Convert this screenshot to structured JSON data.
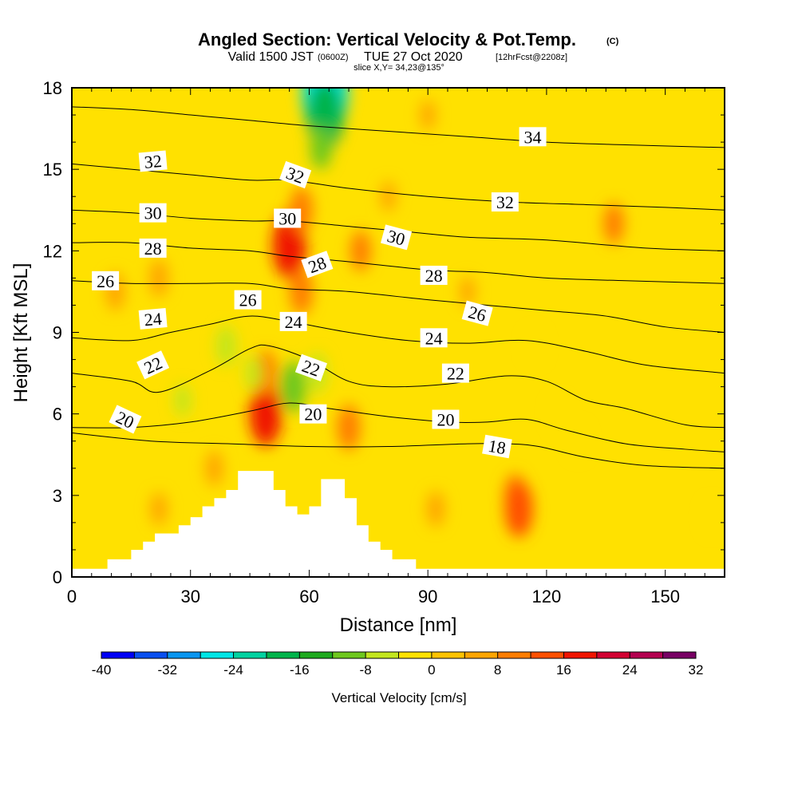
{
  "header": {
    "title": "Angled Section: Vertical Velocity & Pot.Temp.",
    "title_mark": "(C)",
    "valid_prefix": "Valid 1500 JST",
    "valid_utc": "(0600Z)",
    "valid_date": "TUE 27 Oct 2020",
    "forecast": "[12hrFcst@2208z]",
    "slice": "slice X,Y= 34,23@135°"
  },
  "chart_data": {
    "type": "heatmap",
    "xlabel": "Distance [nm]",
    "ylabel": "Height [Kft MSL]",
    "xlim": [
      0,
      165
    ],
    "ylim": [
      0,
      18
    ],
    "xticks": [
      0,
      30,
      60,
      90,
      120,
      150
    ],
    "yticks": [
      0,
      3,
      6,
      9,
      12,
      15,
      18
    ],
    "background_color": "#FFE100",
    "colorbar": {
      "title": "Vertical Velocity [cm/s]",
      "tick_labels": [
        "-40",
        "-32",
        "-24",
        "-16",
        "-8",
        "0",
        "8",
        "16",
        "24",
        "32"
      ],
      "levels": [
        -40,
        -36,
        -32,
        -28,
        -24,
        -20,
        -16,
        -12,
        -8,
        -4,
        0,
        4,
        8,
        12,
        16,
        20,
        24,
        28,
        32
      ],
      "colors": [
        "#0000F5",
        "#0A50F0",
        "#0A96F0",
        "#00E6E6",
        "#00D2A0",
        "#00B44B",
        "#1EAA1E",
        "#6EC81E",
        "#C3E61E",
        "#FFE100",
        "#FFC300",
        "#FFA500",
        "#FF7D00",
        "#FF5000",
        "#F01400",
        "#D20032",
        "#B40050",
        "#780064"
      ]
    },
    "velocity_features": [
      {
        "x": 64,
        "y": 17.9,
        "value": -28
      },
      {
        "x": 64,
        "y": 17,
        "value": -20
      },
      {
        "x": 63,
        "y": 15.8,
        "value": -9
      },
      {
        "x": 55,
        "y": 12.2,
        "value": 18
      },
      {
        "x": 58,
        "y": 13.5,
        "value": 10
      },
      {
        "x": 58,
        "y": 10.5,
        "value": 10
      },
      {
        "x": 49,
        "y": 6,
        "value": 17
      },
      {
        "x": 49,
        "y": 7.5,
        "value": 10
      },
      {
        "x": 56,
        "y": 7,
        "value": -12
      },
      {
        "x": 62,
        "y": 7.5,
        "value": -8
      },
      {
        "x": 46,
        "y": 7.5,
        "value": -6
      },
      {
        "x": 39,
        "y": 8.5,
        "value": -8
      },
      {
        "x": 28,
        "y": 6.5,
        "value": -5
      },
      {
        "x": 70,
        "y": 5.5,
        "value": 10
      },
      {
        "x": 73,
        "y": 12,
        "value": 8
      },
      {
        "x": 22,
        "y": 11,
        "value": 7
      },
      {
        "x": 11,
        "y": 10.5,
        "value": 7
      },
      {
        "x": 112,
        "y": 3,
        "value": 9
      },
      {
        "x": 113,
        "y": 2.5,
        "value": 14
      },
      {
        "x": 128,
        "y": 5,
        "value": -4
      },
      {
        "x": 117,
        "y": 8.5,
        "value": -4
      },
      {
        "x": 123,
        "y": 6,
        "value": -4
      },
      {
        "x": 162,
        "y": 2.2,
        "value": -4
      },
      {
        "x": 137,
        "y": 13,
        "value": 8
      },
      {
        "x": 90,
        "y": 17,
        "value": 4
      },
      {
        "x": 92,
        "y": 2.5,
        "value": 6
      },
      {
        "x": 80,
        "y": 14,
        "value": 4
      },
      {
        "x": 100,
        "y": 10.5,
        "value": 4
      },
      {
        "x": 36,
        "y": 4,
        "value": 6
      },
      {
        "x": 22,
        "y": 2.5,
        "value": 5
      }
    ],
    "terrain": [
      {
        "x": 0,
        "y": 0.3
      },
      {
        "x": 9,
        "y": 0.3
      },
      {
        "x": 9,
        "y": 0.65
      },
      {
        "x": 15,
        "y": 0.65
      },
      {
        "x": 15,
        "y": 1
      },
      {
        "x": 18,
        "y": 1
      },
      {
        "x": 18,
        "y": 1.3
      },
      {
        "x": 21,
        "y": 1.3
      },
      {
        "x": 21,
        "y": 1.6
      },
      {
        "x": 27,
        "y": 1.6
      },
      {
        "x": 27,
        "y": 1.9
      },
      {
        "x": 30,
        "y": 1.9
      },
      {
        "x": 30,
        "y": 2.2
      },
      {
        "x": 33,
        "y": 2.2
      },
      {
        "x": 33,
        "y": 2.6
      },
      {
        "x": 36,
        "y": 2.6
      },
      {
        "x": 36,
        "y": 2.9
      },
      {
        "x": 39,
        "y": 2.9
      },
      {
        "x": 39,
        "y": 3.2
      },
      {
        "x": 42,
        "y": 3.2
      },
      {
        "x": 42,
        "y": 3.9
      },
      {
        "x": 51,
        "y": 3.9
      },
      {
        "x": 51,
        "y": 3.2
      },
      {
        "x": 54,
        "y": 3.2
      },
      {
        "x": 54,
        "y": 2.6
      },
      {
        "x": 57,
        "y": 2.6
      },
      {
        "x": 57,
        "y": 2.3
      },
      {
        "x": 60,
        "y": 2.3
      },
      {
        "x": 60,
        "y": 2.6
      },
      {
        "x": 63,
        "y": 2.6
      },
      {
        "x": 63,
        "y": 3.6
      },
      {
        "x": 69,
        "y": 3.6
      },
      {
        "x": 69,
        "y": 2.9
      },
      {
        "x": 72,
        "y": 2.9
      },
      {
        "x": 72,
        "y": 1.9
      },
      {
        "x": 75,
        "y": 1.9
      },
      {
        "x": 75,
        "y": 1.3
      },
      {
        "x": 78,
        "y": 1.3
      },
      {
        "x": 78,
        "y": 1
      },
      {
        "x": 81,
        "y": 1
      },
      {
        "x": 81,
        "y": 0.65
      },
      {
        "x": 87,
        "y": 0.65
      },
      {
        "x": 87,
        "y": 0.3
      },
      {
        "x": 165,
        "y": 0.3
      }
    ],
    "isentropes": [
      {
        "value": 18,
        "points": [
          [
            0,
            5.3
          ],
          [
            20,
            5
          ],
          [
            40,
            4.9
          ],
          [
            60,
            4.8
          ],
          [
            80,
            4.8
          ],
          [
            100,
            4.9
          ],
          [
            110,
            4.9
          ],
          [
            118,
            4.8
          ],
          [
            130,
            4.4
          ],
          [
            145,
            4.1
          ],
          [
            165,
            4
          ]
        ]
      },
      {
        "value": 20,
        "points": [
          [
            0,
            5.5
          ],
          [
            15,
            5.5
          ],
          [
            30,
            5.7
          ],
          [
            45,
            6.1
          ],
          [
            55,
            6.4
          ],
          [
            65,
            6.2
          ],
          [
            80,
            5.9
          ],
          [
            95,
            5.7
          ],
          [
            105,
            5.7
          ],
          [
            115,
            5.8
          ],
          [
            125,
            5.4
          ],
          [
            140,
            4.9
          ],
          [
            155,
            4.7
          ],
          [
            165,
            4.6
          ]
        ]
      },
      {
        "value": 22,
        "points": [
          [
            0,
            7.5
          ],
          [
            15,
            7.2
          ],
          [
            22,
            6.8
          ],
          [
            35,
            7.6
          ],
          [
            45,
            8.4
          ],
          [
            50,
            8.5
          ],
          [
            60,
            8
          ],
          [
            70,
            7.2
          ],
          [
            80,
            7
          ],
          [
            95,
            7.1
          ],
          [
            110,
            7.4
          ],
          [
            120,
            7.2
          ],
          [
            130,
            6.5
          ],
          [
            140,
            6.2
          ],
          [
            155,
            5.6
          ],
          [
            165,
            5.5
          ]
        ]
      },
      {
        "value": 24,
        "points": [
          [
            0,
            8.8
          ],
          [
            15,
            8.7
          ],
          [
            25,
            9
          ],
          [
            35,
            9.3
          ],
          [
            45,
            9.6
          ],
          [
            55,
            9.4
          ],
          [
            70,
            9
          ],
          [
            85,
            8.7
          ],
          [
            100,
            8.6
          ],
          [
            115,
            8.7
          ],
          [
            130,
            8.3
          ],
          [
            145,
            7.8
          ],
          [
            165,
            7.5
          ]
        ]
      },
      {
        "value": 26,
        "points": [
          [
            0,
            10.9
          ],
          [
            15,
            10.8
          ],
          [
            30,
            10.8
          ],
          [
            45,
            10.8
          ],
          [
            55,
            10.6
          ],
          [
            70,
            10.5
          ],
          [
            90,
            10.2
          ],
          [
            105,
            10
          ],
          [
            120,
            9.8
          ],
          [
            135,
            9.6
          ],
          [
            150,
            9.2
          ],
          [
            165,
            9
          ]
        ]
      },
      {
        "value": 28,
        "points": [
          [
            0,
            12.3
          ],
          [
            15,
            12.3
          ],
          [
            30,
            12.1
          ],
          [
            45,
            12
          ],
          [
            55,
            11.8
          ],
          [
            70,
            11.6
          ],
          [
            90,
            11.3
          ],
          [
            105,
            11.2
          ],
          [
            120,
            11
          ],
          [
            140,
            10.9
          ],
          [
            165,
            10.8
          ]
        ]
      },
      {
        "value": 30,
        "points": [
          [
            0,
            13.5
          ],
          [
            15,
            13.4
          ],
          [
            30,
            13.2
          ],
          [
            45,
            13.1
          ],
          [
            55,
            13.1
          ],
          [
            70,
            12.9
          ],
          [
            85,
            12.7
          ],
          [
            100,
            12.5
          ],
          [
            120,
            12.4
          ],
          [
            145,
            12.1
          ],
          [
            165,
            12
          ]
        ]
      },
      {
        "value": 32,
        "points": [
          [
            0,
            15.2
          ],
          [
            15,
            15
          ],
          [
            30,
            14.8
          ],
          [
            45,
            14.6
          ],
          [
            55,
            14.6
          ],
          [
            70,
            14.3
          ],
          [
            90,
            14
          ],
          [
            110,
            13.8
          ],
          [
            130,
            13.7
          ],
          [
            150,
            13.6
          ],
          [
            165,
            13.5
          ]
        ]
      },
      {
        "value": 34,
        "points": [
          [
            0,
            17.3
          ],
          [
            15,
            17.2
          ],
          [
            30,
            17
          ],
          [
            45,
            16.8
          ],
          [
            60,
            16.6
          ],
          [
            80,
            16.4
          ],
          [
            100,
            16.2
          ],
          [
            120,
            16
          ],
          [
            140,
            15.9
          ],
          [
            165,
            15.8
          ]
        ]
      }
    ],
    "contour_labels": [
      {
        "text": "32",
        "x": 20.5,
        "y": 15.3,
        "angle": -5
      },
      {
        "text": "30",
        "x": 20.5,
        "y": 13.4,
        "angle": 0
      },
      {
        "text": "28",
        "x": 20.5,
        "y": 12.1,
        "angle": 0
      },
      {
        "text": "26",
        "x": 8.5,
        "y": 10.9,
        "angle": 0
      },
      {
        "text": "24",
        "x": 20.5,
        "y": 9.5,
        "angle": -5
      },
      {
        "text": "22",
        "x": 20.5,
        "y": 7.8,
        "angle": -25
      },
      {
        "text": "20",
        "x": 13.5,
        "y": 5.8,
        "angle": 25
      },
      {
        "text": "32",
        "x": 56.5,
        "y": 14.8,
        "angle": 20
      },
      {
        "text": "30",
        "x": 54.5,
        "y": 13.2,
        "angle": 0
      },
      {
        "text": "28",
        "x": 62,
        "y": 11.5,
        "angle": -20
      },
      {
        "text": "26",
        "x": 44.5,
        "y": 10.2,
        "angle": 0
      },
      {
        "text": "24",
        "x": 56,
        "y": 9.4,
        "angle": 0
      },
      {
        "text": "22",
        "x": 60.5,
        "y": 7.7,
        "angle": 20
      },
      {
        "text": "20",
        "x": 61,
        "y": 6,
        "angle": 0
      },
      {
        "text": "34",
        "x": 116.5,
        "y": 16.2,
        "angle": 0
      },
      {
        "text": "32",
        "x": 109.5,
        "y": 13.8,
        "angle": 0
      },
      {
        "text": "30",
        "x": 82,
        "y": 12.5,
        "angle": 15
      },
      {
        "text": "28",
        "x": 91.5,
        "y": 11.1,
        "angle": 0
      },
      {
        "text": "26",
        "x": 102.5,
        "y": 9.7,
        "angle": 15
      },
      {
        "text": "24",
        "x": 91.5,
        "y": 8.8,
        "angle": 0
      },
      {
        "text": "22",
        "x": 97,
        "y": 7.5,
        "angle": 0
      },
      {
        "text": "20",
        "x": 94.5,
        "y": 5.8,
        "angle": 0
      },
      {
        "text": "18",
        "x": 107.5,
        "y": 4.8,
        "angle": 10
      }
    ]
  }
}
